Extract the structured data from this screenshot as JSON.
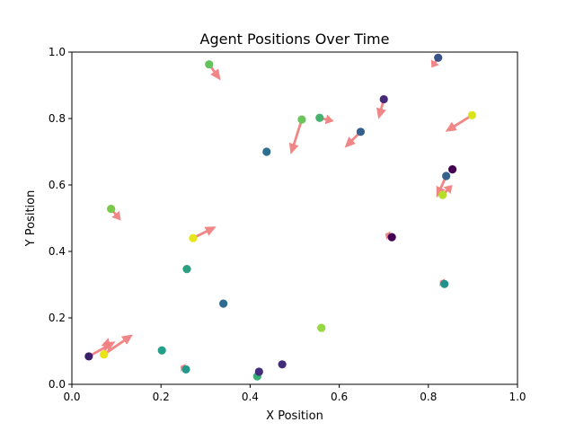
{
  "chart_data": {
    "type": "scatter",
    "title": "Agent Positions Over Time",
    "xlabel": "X Position",
    "ylabel": "Y Position",
    "xlim": [
      0.0,
      1.0
    ],
    "ylim": [
      0.0,
      1.0
    ],
    "x_ticks": [
      "0.0",
      "0.2",
      "0.4",
      "0.6",
      "0.8",
      "1.0"
    ],
    "y_ticks": [
      "0.0",
      "0.2",
      "0.4",
      "0.6",
      "0.8",
      "1.0"
    ],
    "grid": false,
    "arrow_color": "#f08080",
    "points": [
      {
        "x": 0.038,
        "y": 0.084,
        "color": "#3a1f6a",
        "u": 0.06,
        "v": 0.045
      },
      {
        "x": 0.072,
        "y": 0.09,
        "color": "#e8e417",
        "u": 0.065,
        "v": 0.06
      },
      {
        "x": 0.072,
        "y": 0.09,
        "color": "#e8e417",
        "u": 0.01,
        "v": 0.05
      },
      {
        "x": 0.088,
        "y": 0.528,
        "color": "#7ac94a",
        "u": 0.022,
        "v": -0.035
      },
      {
        "x": 0.202,
        "y": 0.102,
        "color": "#24a08a",
        "u": 0.0,
        "v": 0.0
      },
      {
        "x": 0.256,
        "y": 0.045,
        "color": "#23998c",
        "u": -0.012,
        "v": 0.01
      },
      {
        "x": 0.258,
        "y": 0.347,
        "color": "#2ba080",
        "u": 0.0,
        "v": 0.0
      },
      {
        "x": 0.272,
        "y": 0.44,
        "color": "#e6e41a",
        "u": 0.052,
        "v": 0.035
      },
      {
        "x": 0.308,
        "y": 0.963,
        "color": "#62c25c",
        "u": 0.026,
        "v": -0.048
      },
      {
        "x": 0.34,
        "y": 0.243,
        "color": "#2f6b8e",
        "u": 0.0,
        "v": 0.0
      },
      {
        "x": 0.416,
        "y": 0.024,
        "color": "#38ae76",
        "u": 0.0,
        "v": 0.0
      },
      {
        "x": 0.42,
        "y": 0.038,
        "color": "#432d7c",
        "u": 0.0,
        "v": 0.0
      },
      {
        "x": 0.437,
        "y": 0.7,
        "color": "#2d6f8e",
        "u": 0.0,
        "v": 0.0
      },
      {
        "x": 0.472,
        "y": 0.06,
        "color": "#452c7a",
        "u": 0.0,
        "v": 0.0
      },
      {
        "x": 0.516,
        "y": 0.797,
        "color": "#6cc55a",
        "u": -0.025,
        "v": -0.105
      },
      {
        "x": 0.556,
        "y": 0.802,
        "color": "#45b26e",
        "u": 0.032,
        "v": -0.01
      },
      {
        "x": 0.56,
        "y": 0.17,
        "color": "#95d841",
        "u": -0.005,
        "v": -0.01
      },
      {
        "x": 0.648,
        "y": 0.76,
        "color": "#355f8d",
        "u": -0.036,
        "v": -0.048
      },
      {
        "x": 0.7,
        "y": 0.858,
        "color": "#472a7a",
        "u": -0.012,
        "v": -0.06
      },
      {
        "x": 0.718,
        "y": 0.443,
        "color": "#440154",
        "u": -0.015,
        "v": 0.01
      },
      {
        "x": 0.822,
        "y": 0.983,
        "color": "#3b528b",
        "u": -0.015,
        "v": -0.03
      },
      {
        "x": 0.832,
        "y": 0.57,
        "color": "#b5de2b",
        "u": 0.022,
        "v": 0.03
      },
      {
        "x": 0.836,
        "y": 0.302,
        "color": "#21918c",
        "u": -0.01,
        "v": 0.01
      },
      {
        "x": 0.84,
        "y": 0.627,
        "color": "#33638d",
        "u": -0.022,
        "v": -0.065
      },
      {
        "x": 0.854,
        "y": 0.647,
        "color": "#440154",
        "u": 0.0,
        "v": 0.0
      },
      {
        "x": 0.898,
        "y": 0.81,
        "color": "#dde318",
        "u": -0.06,
        "v": -0.05
      }
    ]
  }
}
